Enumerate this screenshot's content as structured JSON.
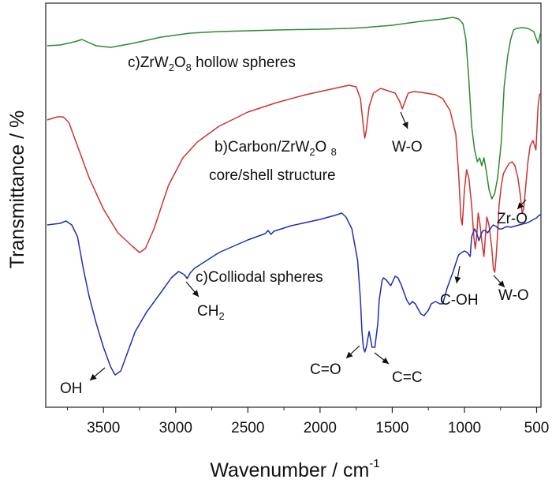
{
  "chart_data": {
    "type": "line",
    "xlabel": "Wavenumber / cm",
    "xlabel_sup": "-1",
    "ylabel": "Transmittance / %",
    "xlim": [
      3900,
      470
    ],
    "x_reversed": true,
    "xticks": [
      3500,
      3000,
      2500,
      2000,
      1500,
      1000,
      500
    ],
    "yticks": "none",
    "grid": false,
    "legend": "none",
    "series": [
      {
        "name": "c)ZrW2O8 hollow spheres",
        "color": "#2e8b2e",
        "points": [
          [
            3890,
            58
          ],
          [
            3800,
            57
          ],
          [
            3700,
            53
          ],
          [
            3650,
            50
          ],
          [
            3600,
            54
          ],
          [
            3550,
            58
          ],
          [
            3450,
            60
          ],
          [
            3300,
            55
          ],
          [
            3100,
            47
          ],
          [
            2900,
            42
          ],
          [
            2700,
            40
          ],
          [
            2500,
            39
          ],
          [
            2300,
            38
          ],
          [
            2000,
            37
          ],
          [
            1800,
            36
          ],
          [
            1700,
            35
          ],
          [
            1500,
            32
          ],
          [
            1300,
            27
          ],
          [
            1150,
            24
          ],
          [
            1080,
            22
          ],
          [
            1040,
            24
          ],
          [
            1010,
            30
          ],
          [
            990,
            50
          ],
          [
            970,
            100
          ],
          [
            950,
            160
          ],
          [
            930,
            190
          ],
          [
            910,
            205
          ],
          [
            895,
            200
          ],
          [
            880,
            210
          ],
          [
            865,
            200
          ],
          [
            850,
            215
          ],
          [
            830,
            240
          ],
          [
            810,
            252
          ],
          [
            790,
            245
          ],
          [
            770,
            225
          ],
          [
            745,
            180
          ],
          [
            725,
            110
          ],
          [
            700,
            70
          ],
          [
            680,
            50
          ],
          [
            660,
            38
          ],
          [
            640,
            36
          ],
          [
            600,
            35
          ],
          [
            560,
            36
          ],
          [
            520,
            40
          ],
          [
            490,
            55
          ],
          [
            470,
            40
          ]
        ]
      },
      {
        "name": "b)Carbon/ZrW2O8 core/shell structure",
        "color": "#cc3333",
        "points": [
          [
            3890,
            152
          ],
          [
            3820,
            148
          ],
          [
            3780,
            148
          ],
          [
            3740,
            155
          ],
          [
            3700,
            175
          ],
          [
            3650,
            200
          ],
          [
            3600,
            225
          ],
          [
            3500,
            265
          ],
          [
            3400,
            295
          ],
          [
            3300,
            312
          ],
          [
            3250,
            320
          ],
          [
            3210,
            315
          ],
          [
            3150,
            290
          ],
          [
            3050,
            235
          ],
          [
            2950,
            200
          ],
          [
            2850,
            180
          ],
          [
            2700,
            160
          ],
          [
            2500,
            142
          ],
          [
            2300,
            130
          ],
          [
            2100,
            120
          ],
          [
            1900,
            112
          ],
          [
            1800,
            108
          ],
          [
            1750,
            110
          ],
          [
            1720,
            125
          ],
          [
            1700,
            160
          ],
          [
            1690,
            175
          ],
          [
            1680,
            165
          ],
          [
            1660,
            135
          ],
          [
            1630,
            118
          ],
          [
            1580,
            112
          ],
          [
            1530,
            115
          ],
          [
            1480,
            118
          ],
          [
            1450,
            128
          ],
          [
            1430,
            138
          ],
          [
            1410,
            128
          ],
          [
            1390,
            118
          ],
          [
            1350,
            116
          ],
          [
            1300,
            117
          ],
          [
            1200,
            120
          ],
          [
            1150,
            125
          ],
          [
            1100,
            140
          ],
          [
            1060,
            170
          ],
          [
            1040,
            220
          ],
          [
            1025,
            275
          ],
          [
            1015,
            285
          ],
          [
            1000,
            240
          ],
          [
            985,
            215
          ],
          [
            970,
            225
          ],
          [
            950,
            260
          ],
          [
            935,
            300
          ],
          [
            925,
            315
          ],
          [
            915,
            300
          ],
          [
            905,
            270
          ],
          [
            895,
            280
          ],
          [
            880,
            305
          ],
          [
            865,
            325
          ],
          [
            855,
            300
          ],
          [
            845,
            275
          ],
          [
            830,
            285
          ],
          [
            810,
            315
          ],
          [
            800,
            340
          ],
          [
            790,
            345
          ],
          [
            780,
            325
          ],
          [
            770,
            295
          ],
          [
            760,
            260
          ],
          [
            745,
            235
          ],
          [
            730,
            220
          ],
          [
            710,
            213
          ],
          [
            690,
            207
          ],
          [
            670,
            205
          ],
          [
            650,
            210
          ],
          [
            630,
            225
          ],
          [
            615,
            245
          ],
          [
            600,
            270
          ],
          [
            590,
            265
          ],
          [
            575,
            235
          ],
          [
            560,
            205
          ],
          [
            545,
            185
          ],
          [
            525,
            178
          ],
          [
            505,
            190
          ],
          [
            490,
            135
          ],
          [
            480,
            120
          ],
          [
            470,
            118
          ]
        ]
      },
      {
        "name": "c)Colliodal spheres",
        "color": "#1f2fb0",
        "points": [
          [
            3890,
            285
          ],
          [
            3800,
            283
          ],
          [
            3760,
            280
          ],
          [
            3720,
            285
          ],
          [
            3680,
            300
          ],
          [
            3640,
            340
          ],
          [
            3600,
            375
          ],
          [
            3550,
            410
          ],
          [
            3500,
            440
          ],
          [
            3450,
            465
          ],
          [
            3420,
            475
          ],
          [
            3380,
            470
          ],
          [
            3340,
            450
          ],
          [
            3280,
            420
          ],
          [
            3200,
            395
          ],
          [
            3100,
            370
          ],
          [
            3030,
            352
          ],
          [
            2980,
            344
          ],
          [
            2940,
            348
          ],
          [
            2920,
            353
          ],
          [
            2900,
            346
          ],
          [
            2870,
            340
          ],
          [
            2700,
            320
          ],
          [
            2500,
            304
          ],
          [
            2380,
            296
          ],
          [
            2360,
            292
          ],
          [
            2340,
            297
          ],
          [
            2320,
            293
          ],
          [
            2200,
            286
          ],
          [
            2000,
            278
          ],
          [
            1900,
            273
          ],
          [
            1850,
            270
          ],
          [
            1820,
            275
          ],
          [
            1780,
            290
          ],
          [
            1740,
            330
          ],
          [
            1720,
            380
          ],
          [
            1710,
            420
          ],
          [
            1700,
            440
          ],
          [
            1690,
            446
          ],
          [
            1680,
            440
          ],
          [
            1660,
            420
          ],
          [
            1650,
            430
          ],
          [
            1640,
            440
          ],
          [
            1620,
            440
          ],
          [
            1600,
            410
          ],
          [
            1590,
            380
          ],
          [
            1570,
            355
          ],
          [
            1560,
            352
          ],
          [
            1540,
            355
          ],
          [
            1520,
            360
          ],
          [
            1510,
            362
          ],
          [
            1500,
            358
          ],
          [
            1480,
            350
          ],
          [
            1460,
            352
          ],
          [
            1440,
            360
          ],
          [
            1420,
            370
          ],
          [
            1400,
            380
          ],
          [
            1380,
            386
          ],
          [
            1360,
            382
          ],
          [
            1340,
            385
          ],
          [
            1320,
            392
          ],
          [
            1300,
            398
          ],
          [
            1280,
            400
          ],
          [
            1250,
            393
          ],
          [
            1230,
            385
          ],
          [
            1200,
            382
          ],
          [
            1170,
            385
          ],
          [
            1150,
            385
          ],
          [
            1120,
            365
          ],
          [
            1080,
            345
          ],
          [
            1050,
            328
          ],
          [
            1040,
            323
          ],
          [
            1020,
            320
          ],
          [
            1000,
            318
          ],
          [
            980,
            320
          ],
          [
            960,
            325
          ],
          [
            950,
            300
          ],
          [
            930,
            290
          ],
          [
            915,
            295
          ],
          [
            900,
            305
          ],
          [
            890,
            300
          ],
          [
            880,
            295
          ],
          [
            870,
            292
          ],
          [
            855,
            292
          ],
          [
            840,
            295
          ],
          [
            820,
            290
          ],
          [
            810,
            287
          ],
          [
            800,
            285
          ],
          [
            780,
            287
          ],
          [
            760,
            290
          ],
          [
            740,
            290
          ],
          [
            720,
            288
          ],
          [
            700,
            287
          ],
          [
            680,
            288
          ],
          [
            660,
            287
          ],
          [
            640,
            286
          ],
          [
            620,
            285
          ],
          [
            600,
            284
          ],
          [
            580,
            283
          ],
          [
            560,
            282
          ],
          [
            540,
            280
          ],
          [
            520,
            278
          ],
          [
            500,
            276
          ],
          [
            490,
            274
          ],
          [
            475,
            272
          ],
          [
            470,
            273
          ]
        ]
      }
    ],
    "annotations": [
      {
        "text": "c)ZrW2O8 hollow spheres"
      },
      {
        "text": "b)Carbon/ZrW2O8"
      },
      {
        "text": "core/shell structure"
      },
      {
        "text": "c)Colliodal spheres"
      },
      {
        "text": "W-O"
      },
      {
        "text": "Zr-O"
      },
      {
        "text": "W-O"
      },
      {
        "text": "C-OH"
      },
      {
        "text": "CH2"
      },
      {
        "text": "C=O"
      },
      {
        "text": "C=C"
      },
      {
        "text": "OH"
      }
    ]
  }
}
